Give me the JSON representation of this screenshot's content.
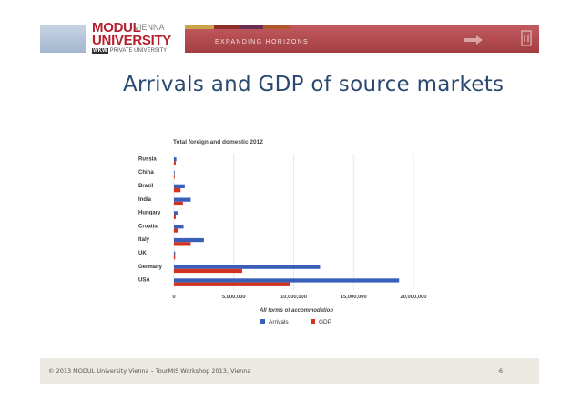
{
  "header": {
    "logo": {
      "line1": "MODUL",
      "vienna": "VIENNA",
      "line2": "UNIVERSITY",
      "badge": "WKW",
      "line3": "PRIVATE UNIVERSITY"
    },
    "slogan": "EXPANDING HORIZONS",
    "colors": {
      "red_band": "#a33e42",
      "blue_band": "#a4b7cf",
      "strips": [
        "#c9a44a",
        "#8c2e2a",
        "#6a2f4f",
        "#b0582c"
      ]
    },
    "icons": [
      "arrow-icon",
      "modul-mark-icon"
    ]
  },
  "slide": {
    "title": "Arrivals and GDP of source markets"
  },
  "chart_data": {
    "type": "bar",
    "orientation": "horizontal",
    "title": "Total foreign and domestic 2012",
    "xlabel": "All forms of accommodation",
    "ylabel": "",
    "categories": [
      "Russia",
      "China",
      "Brazil",
      "India",
      "Hungary",
      "Croatia",
      "Italy",
      "UK",
      "Germany",
      "USA"
    ],
    "series": [
      {
        "name": "Arrivals",
        "color": "#3a5fb8",
        "values": [
          200000,
          50000,
          900000,
          1400000,
          300000,
          800000,
          2500000,
          100000,
          12200000,
          18800000
        ]
      },
      {
        "name": "GDP",
        "color": "#d2331f",
        "values": [
          150000,
          60000,
          550000,
          750000,
          150000,
          350000,
          1400000,
          100000,
          5700000,
          9700000
        ]
      }
    ],
    "xlim": [
      0,
      20000000
    ],
    "x_ticks": [
      "0",
      "5,000,000",
      "10,000,000",
      "15,000,000",
      "20,000,000"
    ],
    "grid": true,
    "legend_position": "bottom"
  },
  "footer": {
    "text": "© 2013 MODUL University Vienna – TourMIS Workshop 2013, Vienna",
    "page": "6"
  }
}
